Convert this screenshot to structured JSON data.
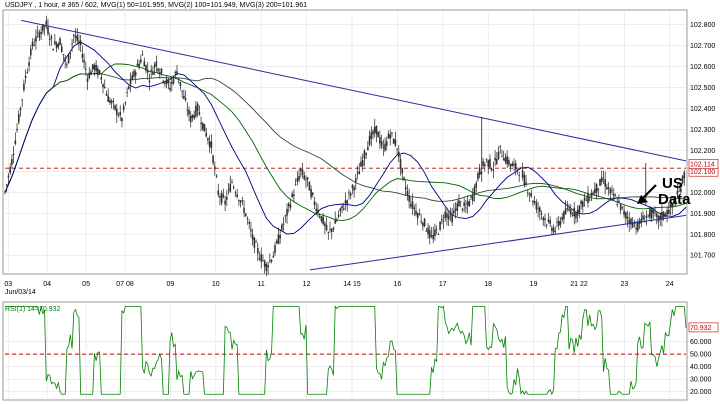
{
  "chart_data": [
    {
      "type": "line",
      "title": "USDJPY , 1 hour, # 365 / 602, MVG(1) 50=101.955, MVG(2) 100=101.949, MVG(3) 200=101.961",
      "ylim": [
        101.62,
        102.86
      ],
      "y_ticks": [
        "102.800",
        "102.700",
        "102.600",
        "102.500",
        "102.400",
        "102.300",
        "102.200",
        "102.100",
        "102.000",
        "101.900",
        "101.800",
        "101.700"
      ],
      "y_tick_values": [
        102.8,
        102.7,
        102.6,
        102.5,
        102.4,
        102.3,
        102.2,
        102.1,
        102.0,
        101.9,
        101.8,
        101.7
      ],
      "x_ticks": [
        "03",
        "04",
        "05",
        "07 08",
        "09",
        "10",
        "11",
        "12",
        "14 15",
        "16",
        "17",
        "18",
        "19",
        "21 22",
        "23",
        "24"
      ],
      "x_tick_pos": [
        0.5,
        6.5,
        12.5,
        18.5,
        25.5,
        32.5,
        39.5,
        46.5,
        53.5,
        60.5,
        67.5,
        74.5,
        81.5,
        88.5,
        95.5,
        102.5
      ],
      "x_range": [
        0,
        105
      ],
      "date_label": "Jun/03/14",
      "current_price": "102.114",
      "level_price": 102.115,
      "level_tag": "102.100",
      "level_color": "#c00000",
      "grid": true,
      "price": [
        102.0,
        102.15,
        102.35,
        102.55,
        102.7,
        102.76,
        102.8,
        102.7,
        102.72,
        102.6,
        102.75,
        102.7,
        102.55,
        102.6,
        102.55,
        102.45,
        102.4,
        102.35,
        102.5,
        102.58,
        102.65,
        102.55,
        102.62,
        102.55,
        102.5,
        102.58,
        102.45,
        102.35,
        102.4,
        102.3,
        102.22,
        102.0,
        101.95,
        102.05,
        101.98,
        101.9,
        101.78,
        101.7,
        101.65,
        101.7,
        101.8,
        101.9,
        102.0,
        102.1,
        102.05,
        101.95,
        101.88,
        101.8,
        101.85,
        101.92,
        101.98,
        102.05,
        102.15,
        102.25,
        102.3,
        102.2,
        102.28,
        102.22,
        102.05,
        101.95,
        101.9,
        101.85,
        101.78,
        101.82,
        101.9,
        101.88,
        101.95,
        101.92,
        101.98,
        102.1,
        102.15,
        102.12,
        102.2,
        102.15,
        102.12,
        102.1,
        102.02,
        101.95,
        101.9,
        101.85,
        101.82,
        101.88,
        101.92,
        101.9,
        101.95,
        101.98,
        102.02,
        102.06,
        102.0,
        101.96,
        101.9,
        101.86,
        101.84,
        101.88,
        101.9,
        101.87,
        101.9,
        101.93,
        102.0,
        102.11
      ],
      "trendlines": [
        {
          "from": [
            2.5,
            102.82
          ],
          "to": [
            105,
            102.15
          ]
        },
        {
          "from": [
            47,
            101.63
          ],
          "to": [
            105,
            101.89
          ]
        }
      ],
      "series": [
        {
          "name": "MVG(1) 50",
          "color": "#000080"
        },
        {
          "name": "MVG(2) 100",
          "color": "#006400"
        },
        {
          "name": "MVG(3) 200",
          "color": "#2e4a2e"
        }
      ],
      "annotation": "US Data"
    },
    {
      "type": "line",
      "title": "RSI(1) 14=70.932",
      "ylim": [
        15,
        90
      ],
      "y_ticks": [
        "60.000",
        "50.000",
        "40.000",
        "30.000",
        "20.000"
      ],
      "y_tick_values": [
        60,
        50,
        40,
        30,
        20
      ],
      "current_value": "70.932",
      "level": 50,
      "level_color": "#c00000",
      "color": "#008000"
    }
  ]
}
